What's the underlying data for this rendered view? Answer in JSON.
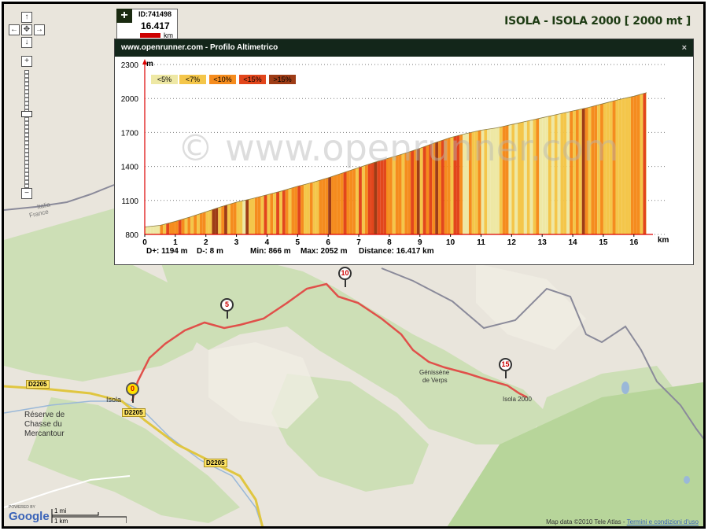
{
  "title": "ISOLA - ISOLA 2000 [ 2000 mt ]",
  "track": {
    "id_label": "ID:741498",
    "distance": "16.417",
    "unit": "km",
    "add_button": "+"
  },
  "navigation": {
    "pan_up": "↑",
    "pan_left": "←",
    "pan_center": "✥",
    "pan_right": "→",
    "pan_down": "↓",
    "zoom_in": "+",
    "zoom_out": "−"
  },
  "profile": {
    "header": "www.openrunner.com - Profilo Altimetrico",
    "close": "×",
    "watermark": "© www.openrunner.com",
    "y_unit": "m",
    "x_unit": "km",
    "y_ticks": [
      "2300",
      "2000",
      "1700",
      "1400",
      "1100",
      "800"
    ],
    "x_ticks": [
      "0",
      "1",
      "2",
      "3",
      "4",
      "5",
      "6",
      "7",
      "8",
      "9",
      "10",
      "11",
      "12",
      "13",
      "14",
      "15",
      "16"
    ],
    "legend": [
      {
        "label": "<5%",
        "color": "#eee8a4"
      },
      {
        "label": "<7%",
        "color": "#f4c64a"
      },
      {
        "label": "<10%",
        "color": "#f58c1e"
      },
      {
        "label": "<15%",
        "color": "#e2461c"
      },
      {
        "label": ">15%",
        "color": "#9e3c16"
      }
    ],
    "summary": {
      "d_plus": "D+: 1194 m",
      "d_minus": "D-: 8 m",
      "min": "Min: 866 m",
      "max": "Max: 2052 m",
      "distance": "Distance: 16.417 km"
    }
  },
  "chart_data": {
    "type": "area",
    "xlabel": "km",
    "ylabel": "m",
    "xlim": [
      0,
      16.417
    ],
    "ylim": [
      800,
      2300
    ],
    "x": [
      0,
      0.5,
      1,
      1.5,
      2,
      2.5,
      3,
      3.5,
      4,
      4.5,
      5,
      5.5,
      6,
      6.5,
      7,
      7.5,
      8,
      8.5,
      9,
      9.5,
      10,
      10.5,
      11,
      11.5,
      12,
      12.5,
      13,
      13.5,
      14,
      14.5,
      15,
      15.5,
      16,
      16.417
    ],
    "y": [
      866,
      880,
      915,
      955,
      1000,
      1045,
      1085,
      1115,
      1150,
      1185,
      1225,
      1260,
      1300,
      1345,
      1390,
      1435,
      1475,
      1515,
      1560,
      1610,
      1655,
      1690,
      1720,
      1740,
      1770,
      1800,
      1830,
      1860,
      1890,
      1920,
      1955,
      1990,
      2020,
      2052
    ],
    "legend_position": "top-left",
    "grid": true
  },
  "map": {
    "labels": {
      "italia": "Italia",
      "france": "France",
      "isola": "Isola",
      "isola2000": "Isola 2000",
      "gentissene_1": "Génissène",
      "gentissene_2": "de Verps",
      "reserve_1": "Réserve de",
      "reserve_2": "Chasse du",
      "reserve_3": "Mercantour"
    },
    "roads": [
      "D2205",
      "D2205",
      "D2205"
    ],
    "markers": [
      "0",
      "5",
      "10",
      "15"
    ],
    "scale": {
      "mi": "1 mi",
      "km": "1 km"
    },
    "google": "Google",
    "powered_by": "POWERED BY",
    "attribution": "Map data ©2010 Tele Atlas -",
    "terms_link": "Termini e condizioni d'uso"
  }
}
